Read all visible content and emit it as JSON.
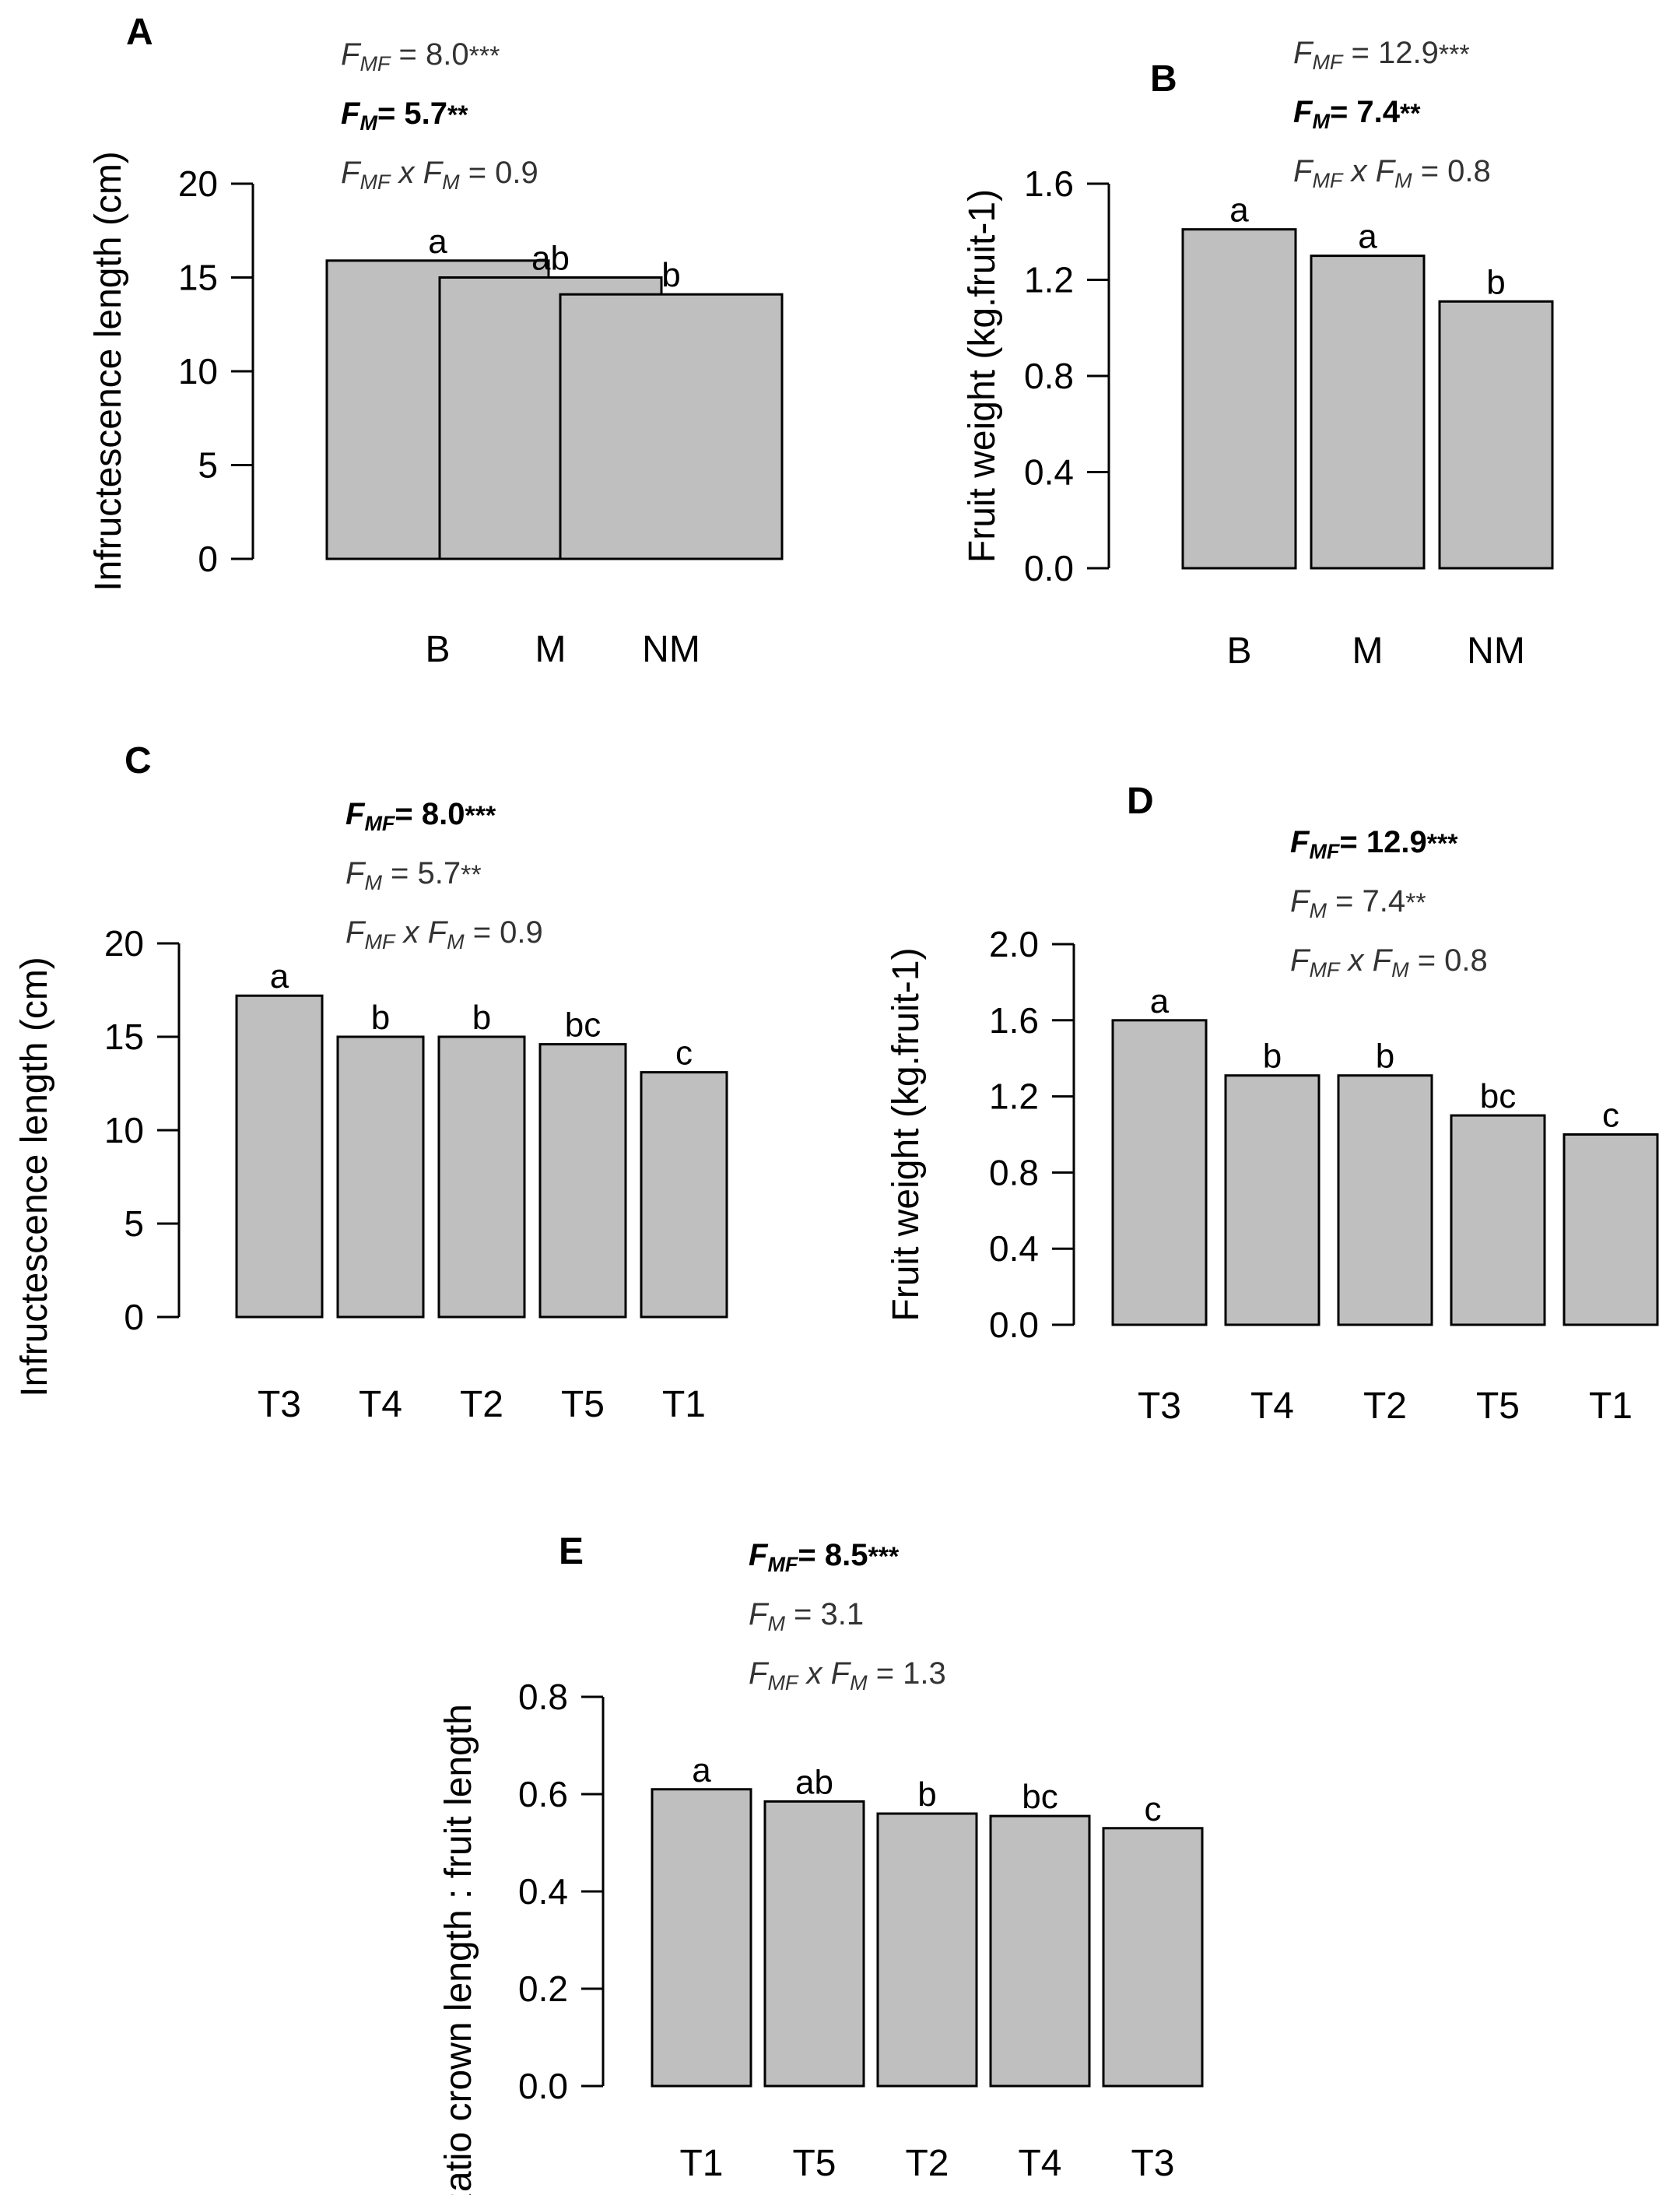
{
  "chart_data": [
    {
      "id": "A",
      "type": "bar",
      "panel_label": "A",
      "ylabel": "Infructescence length (cm)",
      "categories": [
        "B",
        "M",
        "NM"
      ],
      "values": [
        15.9,
        15.0,
        14.1
      ],
      "letters": [
        "a",
        "ab",
        "b"
      ],
      "ylim": [
        0,
        20
      ],
      "yticks": [
        "0",
        "5",
        "10",
        "15",
        "20"
      ],
      "stats": {
        "mf": {
          "sym": "F",
          "sub": "MF",
          "text": " = 8.0",
          "stars": "***",
          "bold": false
        },
        "m": {
          "sym": "F",
          "sub": "M",
          "text": "= 5.7",
          "stars": "**",
          "bold": true
        },
        "inter": {
          "sym1": "F",
          "sub1": "MF",
          "mid": " x ",
          "sym2": "F",
          "sub2": "M",
          "text": " = 0.9"
        }
      }
    },
    {
      "id": "B",
      "type": "bar",
      "panel_label": "B",
      "ylabel": "Fruit weight (kg.fruit-1)",
      "categories": [
        "B",
        "M",
        "NM"
      ],
      "values": [
        1.41,
        1.3,
        1.11
      ],
      "letters": [
        "a",
        "a",
        "b"
      ],
      "ylim": [
        0,
        1.6
      ],
      "yticks": [
        "0.0",
        "0.4",
        "0.8",
        "1.2",
        "1.6"
      ],
      "stats": {
        "mf": {
          "sym": "F",
          "sub": "MF",
          "text": " = 12.9",
          "stars": "***",
          "bold": false
        },
        "m": {
          "sym": "F",
          "sub": "M",
          "text": "= 7.4",
          "stars": "**",
          "bold": true
        },
        "inter": {
          "sym1": "F",
          "sub1": "MF",
          "mid": " x ",
          "sym2": "F",
          "sub2": "M",
          "text": " = 0.8"
        }
      }
    },
    {
      "id": "C",
      "type": "bar",
      "panel_label": "C",
      "ylabel": "Infructescence length (cm)",
      "categories": [
        "T3",
        "T4",
        "T2",
        "T5",
        "T1"
      ],
      "values": [
        17.2,
        15.0,
        15.0,
        14.6,
        13.1
      ],
      "letters": [
        "a",
        "b",
        "b",
        "bc",
        "c"
      ],
      "ylim": [
        0,
        20
      ],
      "yticks": [
        "0",
        "5",
        "10",
        "15",
        "20"
      ],
      "stats": {
        "mf": {
          "sym": "F",
          "sub": "MF",
          "text": "= 8.0",
          "stars": "***",
          "bold": true
        },
        "m": {
          "sym": "F",
          "sub": "M",
          "text": " = 5.7",
          "stars": "**",
          "bold": false
        },
        "inter": {
          "sym1": "F",
          "sub1": "MF",
          "mid": " x ",
          "sym2": "F",
          "sub2": "M",
          "text": " = 0.9"
        }
      }
    },
    {
      "id": "D",
      "type": "bar",
      "panel_label": "D",
      "ylabel": "Fruit weight (kg.fruit-1)",
      "categories": [
        "T3",
        "T4",
        "T2",
        "T5",
        "T1"
      ],
      "values": [
        1.6,
        1.31,
        1.31,
        1.1,
        1.0
      ],
      "letters": [
        "a",
        "b",
        "b",
        "bc",
        "c"
      ],
      "ylim": [
        0,
        2.0
      ],
      "yticks": [
        "0.0",
        "0.4",
        "0.8",
        "1.2",
        "1.6",
        "2.0"
      ],
      "stats": {
        "mf": {
          "sym": "F",
          "sub": "MF",
          "text": "= 12.9",
          "stars": "***",
          "bold": true
        },
        "m": {
          "sym": "F",
          "sub": "M",
          "text": " = 7.4",
          "stars": "**",
          "bold": false
        },
        "inter": {
          "sym1": "F",
          "sub1": "MF",
          "mid": " x ",
          "sym2": "F",
          "sub2": "M",
          "text": " = 0.8"
        }
      }
    },
    {
      "id": "E",
      "type": "bar",
      "panel_label": "E",
      "ylabel": "Ratio crown length : fruit length",
      "categories": [
        "T1",
        "T5",
        "T2",
        "T4",
        "T3"
      ],
      "values": [
        0.61,
        0.585,
        0.56,
        0.555,
        0.53
      ],
      "letters": [
        "a",
        "ab",
        "b",
        "bc",
        "c"
      ],
      "ylim": [
        0,
        0.8
      ],
      "yticks": [
        "0.0",
        "0.2",
        "0.4",
        "0.6",
        "0.8"
      ],
      "stats": {
        "mf": {
          "sym": "F",
          "sub": "MF",
          "text": "= 8.5",
          "stars": "***",
          "bold": true
        },
        "m": {
          "sym": "F",
          "sub": "M",
          "text": " = 3.1",
          "stars": "",
          "bold": false
        },
        "inter": {
          "sym1": "F",
          "sub1": "MF",
          "mid": " x ",
          "sym2": "F",
          "sub2": "M",
          "text": " = 1.3"
        }
      }
    }
  ],
  "colors": {
    "bar_fill": "#bfbfbf",
    "bar_stroke": "#000000",
    "axis": "#000000",
    "stats_text": "#333333"
  }
}
